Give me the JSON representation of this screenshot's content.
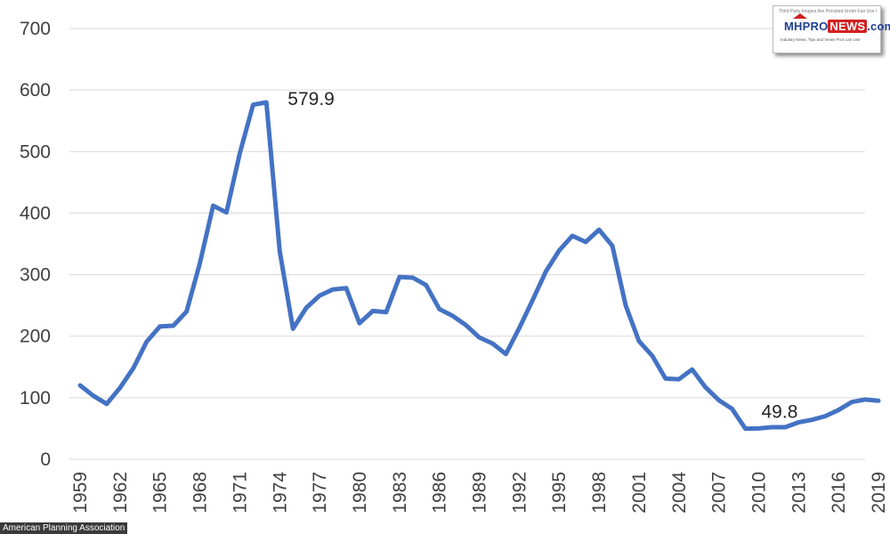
{
  "chart_data": {
    "type": "line",
    "title": "",
    "xlabel": "",
    "ylabel": "",
    "ylim": [
      0,
      700
    ],
    "y_ticks": [
      "0",
      "100",
      "200",
      "300",
      "400",
      "500",
      "600",
      "700"
    ],
    "x_ticks": [
      "1959",
      "1962",
      "1965",
      "1968",
      "1971",
      "1974",
      "1977",
      "1980",
      "1983",
      "1986",
      "1989",
      "1992",
      "1995",
      "1998",
      "2001",
      "2004",
      "2007",
      "2010",
      "2013",
      "2016",
      "2019"
    ],
    "grid": "horizontal",
    "legend": "none",
    "series": [
      {
        "color": "#4472c4",
        "x": [
          1959,
          1960,
          1961,
          1962,
          1963,
          1964,
          1965,
          1966,
          1967,
          1968,
          1969,
          1970,
          1971,
          1972,
          1973,
          1974,
          1975,
          1976,
          1977,
          1978,
          1979,
          1980,
          1981,
          1982,
          1983,
          1984,
          1985,
          1986,
          1987,
          1988,
          1989,
          1990,
          1991,
          1992,
          1993,
          1994,
          1995,
          1996,
          1997,
          1998,
          1999,
          2000,
          2001,
          2002,
          2003,
          2004,
          2005,
          2006,
          2007,
          2008,
          2009,
          2010,
          2011,
          2012,
          2013,
          2014,
          2015,
          2016,
          2017,
          2018,
          2019
        ],
        "values": [
          120,
          103,
          90,
          116,
          148,
          191,
          216,
          217,
          240,
          318,
          412,
          401,
          497,
          576,
          579.9,
          338,
          212,
          246,
          266,
          276,
          278,
          221,
          241,
          239,
          296,
          295,
          283,
          244,
          233,
          218,
          198,
          188,
          171,
          213,
          258,
          305,
          339,
          363,
          353,
          373,
          347,
          250,
          192,
          168,
          131,
          130,
          146,
          117,
          96,
          82,
          49.8,
          50,
          52,
          52,
          60,
          64,
          70,
          80,
          93,
          97,
          95
        ]
      }
    ],
    "annotations": [
      {
        "text": "579.9",
        "x": 1973,
        "y": 579.9
      },
      {
        "text": "49.8",
        "x": 2009,
        "y": 49.8
      }
    ]
  },
  "watermark": {
    "top_text": "Third Party Images Are Provided Under Fair Use Guidelines",
    "brand_main": "MHPRO",
    "brand_accent": "NEWS",
    "brand_suffix": ".com",
    "tagline": "Industry News, Tips and Views Pros can Use"
  },
  "source_label": "American Planning Association"
}
